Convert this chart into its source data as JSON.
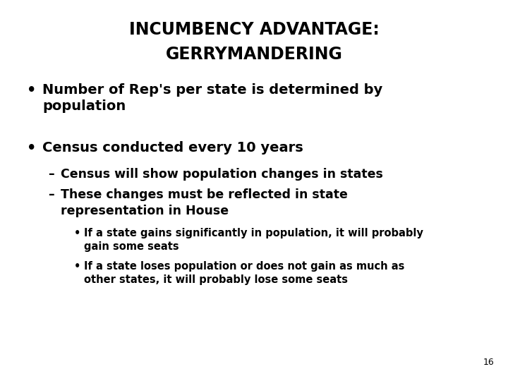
{
  "title_line1": "INCUMBENCY ADVANTAGE:",
  "title_line2": "GERRYMANDERING",
  "bg_color": "#ffffff",
  "text_color": "#000000",
  "page_number": "16",
  "bullet1_line1": "Number of Rep's per state is determined by",
  "bullet1_line2": "population",
  "bullet2": "Census conducted every 10 years",
  "sub1": "Census will show population changes in states",
  "sub2_line1": "These changes must be reflected in state",
  "sub2_line2": "representation in House",
  "subsub1_line1": "If a state gains significantly in population, it will probably",
  "subsub1_line2": "gain some seats",
  "subsub2_line1": "If a state loses population or does not gain as much as",
  "subsub2_line2": "other states, it will probably lose some seats",
  "title_fontsize": 17,
  "bullet_fontsize": 14,
  "sub_fontsize": 12.5,
  "subsub_fontsize": 10.5,
  "page_fontsize": 9
}
